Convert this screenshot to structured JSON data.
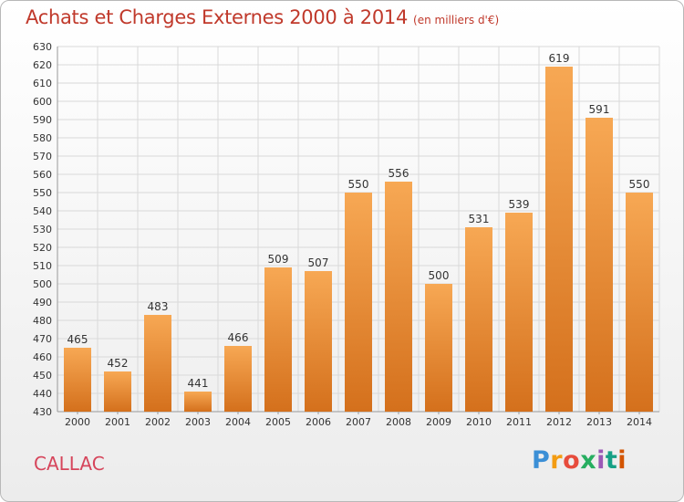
{
  "header": {
    "title": "Achats et Charges Externes 2000 à 2014",
    "unit": "(en milliers d'€)"
  },
  "footer": {
    "commune": "CALLAC",
    "logo": "Proxiti"
  },
  "colors": {
    "bar_light": "#f7a854",
    "bar_dark": "#d4701c",
    "title": "#c0392b",
    "commune": "#d6455b",
    "grid": "#d9d9d9"
  },
  "chart_data": {
    "type": "bar",
    "title": "Achats et Charges Externes 2000 à 2014",
    "categories": [
      "2000",
      "2001",
      "2002",
      "2003",
      "2004",
      "2005",
      "2006",
      "2007",
      "2008",
      "2009",
      "2010",
      "2011",
      "2012",
      "2013",
      "2014"
    ],
    "values": [
      465,
      452,
      483,
      441,
      466,
      509,
      507,
      550,
      556,
      500,
      531,
      539,
      619,
      591,
      550
    ],
    "ylim": [
      430,
      630
    ],
    "ytick_step": 10,
    "grid": true,
    "xlabel": "",
    "ylabel": ""
  }
}
